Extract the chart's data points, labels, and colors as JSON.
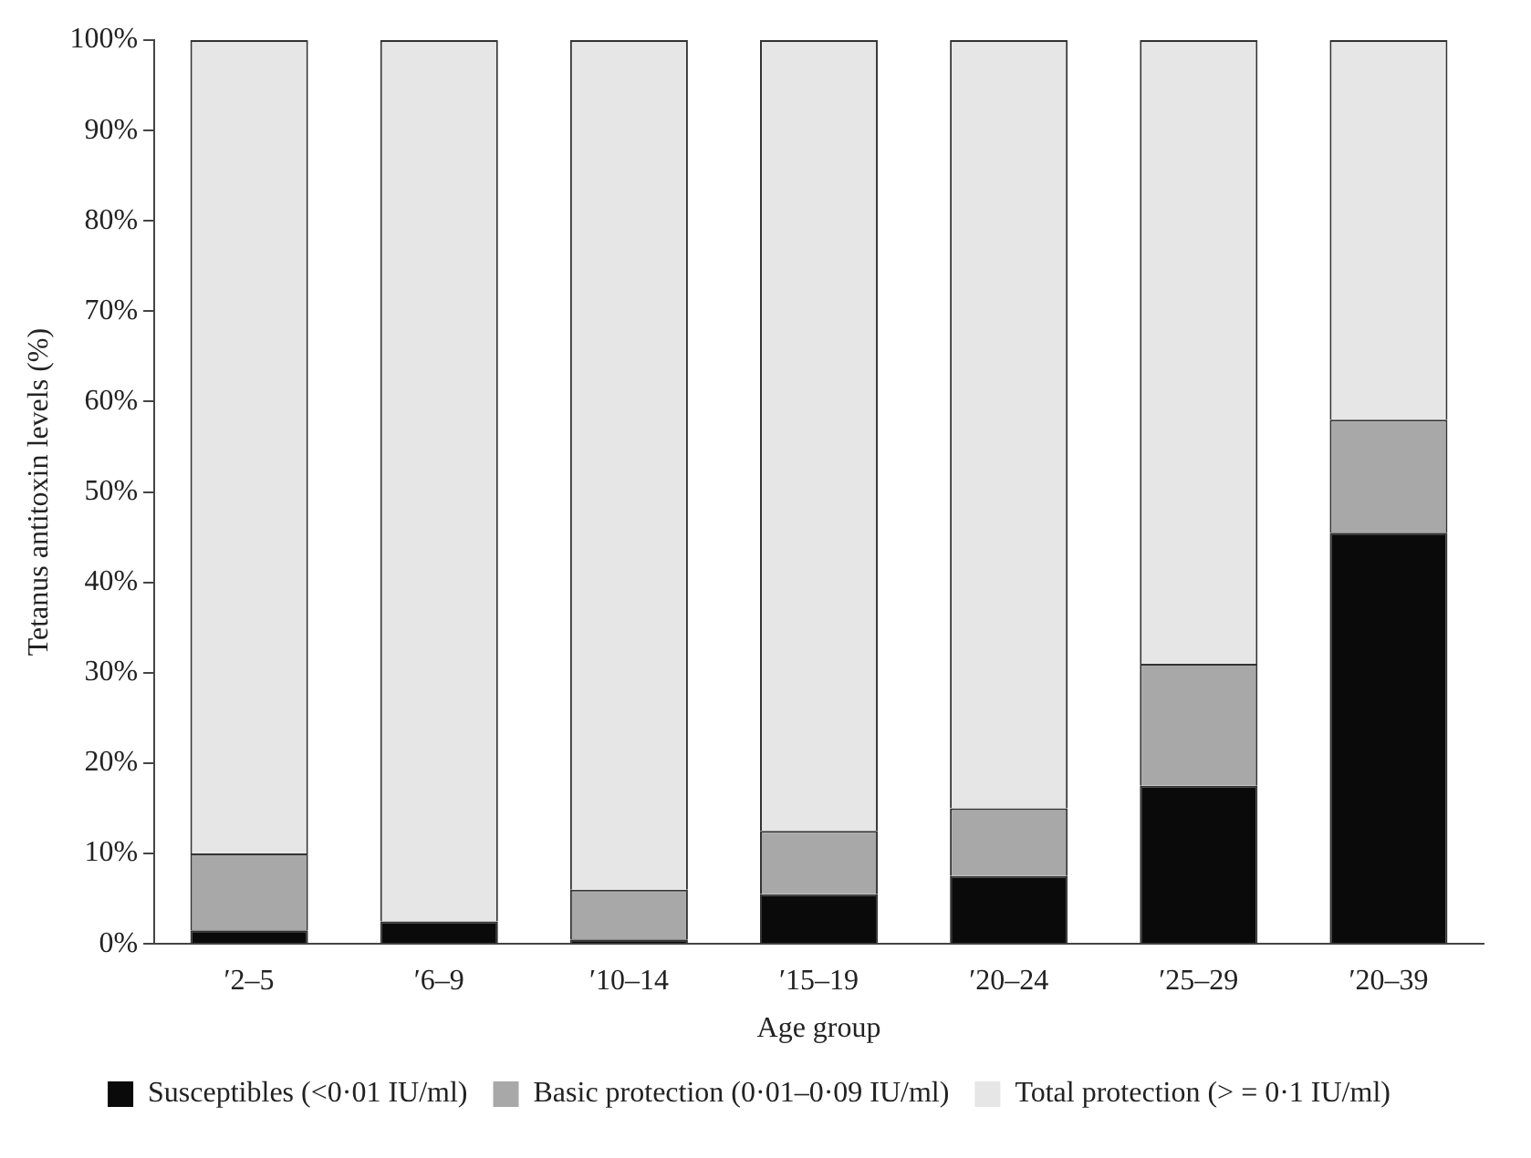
{
  "chart_data": {
    "type": "bar",
    "stacked": true,
    "xlabel": "Age group",
    "ylabel": "Tetanus antitoxin levels (%)",
    "categories": [
      "′2–5",
      "′6–9",
      "′10–14",
      "′15–19",
      "′20–24",
      "′25–29",
      "′20–39"
    ],
    "series": [
      {
        "name": "Susceptibles (<0·01 IU/ml)",
        "color": "#0a0a0a",
        "values": [
          1.5,
          2.5,
          0.5,
          5.5,
          7.5,
          17.5,
          45.5
        ]
      },
      {
        "name": "Basic protection (0·01–0·09 IU/ml)",
        "color": "#a8a8a8",
        "values": [
          8.5,
          0,
          5.5,
          7,
          7.5,
          13.5,
          12.5
        ]
      },
      {
        "name": "Total protection (> = 0·1 IU/ml)",
        "color": "#e6e6e6",
        "values": [
          90,
          97.5,
          94,
          87.5,
          85,
          69,
          42
        ]
      }
    ],
    "ylim": [
      0,
      100
    ],
    "yticks": [
      {
        "value": 0,
        "label": "0%"
      },
      {
        "value": 10,
        "label": "10%"
      },
      {
        "value": 20,
        "label": "20%"
      },
      {
        "value": 30,
        "label": "30%"
      },
      {
        "value": 40,
        "label": "40%"
      },
      {
        "value": 50,
        "label": "50%"
      },
      {
        "value": 60,
        "label": "60%"
      },
      {
        "value": 70,
        "label": "70%"
      },
      {
        "value": 80,
        "label": "80%"
      },
      {
        "value": 90,
        "label": "90%"
      },
      {
        "value": 100,
        "label": "100%"
      }
    ],
    "grid": false,
    "legend": "bottom"
  }
}
